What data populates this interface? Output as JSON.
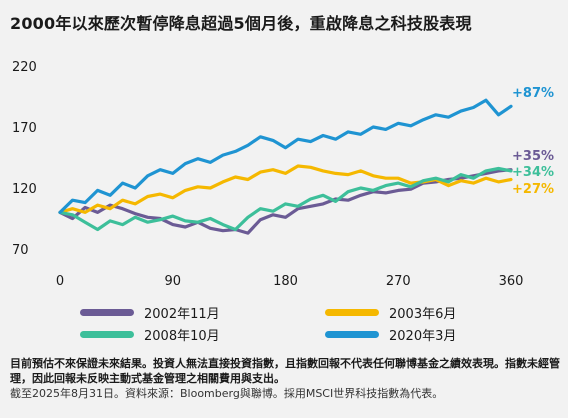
{
  "title": "2000年以來歷次暫停降息超過5個月後，重啟降息之科技股表現",
  "chart_data": {
    "type": "line",
    "xlabel": "",
    "ylabel": "",
    "xlim": [
      0,
      360
    ],
    "ylim": [
      70,
      220
    ],
    "x_ticks": [
      "0",
      "90",
      "180",
      "270",
      "360"
    ],
    "y_ticks": [
      "70",
      "120",
      "170",
      "220"
    ],
    "grid": false,
    "legend_position": "bottom",
    "series": [
      {
        "name": "2002年11月",
        "color": "#6b5b95",
        "end_label": "+35%",
        "x": [
          0,
          10,
          20,
          30,
          40,
          50,
          60,
          70,
          80,
          90,
          100,
          110,
          120,
          130,
          140,
          150,
          160,
          170,
          180,
          190,
          200,
          210,
          220,
          230,
          240,
          250,
          260,
          270,
          280,
          290,
          300,
          310,
          320,
          330,
          340,
          350,
          360
        ],
        "y": [
          100,
          95,
          104,
          100,
          106,
          103,
          99,
          96,
          95,
          90,
          88,
          92,
          87,
          85,
          86,
          83,
          94,
          98,
          96,
          103,
          105,
          107,
          111,
          110,
          114,
          117,
          116,
          118,
          119,
          124,
          125,
          127,
          128,
          130,
          132,
          134,
          135
        ]
      },
      {
        "name": "2003年6月",
        "color": "#f5b800",
        "end_label": "+27%",
        "x": [
          0,
          10,
          20,
          30,
          40,
          50,
          60,
          70,
          80,
          90,
          100,
          110,
          120,
          130,
          140,
          150,
          160,
          170,
          180,
          190,
          200,
          210,
          220,
          230,
          240,
          250,
          260,
          270,
          280,
          290,
          300,
          310,
          320,
          330,
          340,
          350,
          360
        ],
        "y": [
          100,
          103,
          100,
          106,
          103,
          110,
          107,
          113,
          115,
          112,
          118,
          121,
          120,
          125,
          129,
          127,
          133,
          135,
          132,
          138,
          137,
          134,
          132,
          131,
          134,
          130,
          128,
          128,
          124,
          125,
          127,
          122,
          126,
          124,
          128,
          125,
          127
        ]
      },
      {
        "name": "2008年10月",
        "color": "#3dbf9a",
        "end_label": "+34%",
        "x": [
          0,
          10,
          20,
          30,
          40,
          50,
          60,
          70,
          80,
          90,
          100,
          110,
          120,
          130,
          140,
          150,
          160,
          170,
          180,
          190,
          200,
          210,
          220,
          230,
          240,
          250,
          260,
          270,
          280,
          290,
          300,
          310,
          320,
          330,
          340,
          350,
          360
        ],
        "y": [
          100,
          98,
          92,
          86,
          93,
          90,
          96,
          92,
          94,
          97,
          93,
          92,
          95,
          90,
          86,
          96,
          103,
          101,
          107,
          105,
          111,
          114,
          109,
          117,
          120,
          118,
          122,
          124,
          121,
          126,
          128,
          125,
          131,
          128,
          134,
          136,
          134
        ]
      },
      {
        "name": "2020年3月",
        "color": "#1f94d2",
        "end_label": "+87%",
        "x": [
          0,
          10,
          20,
          30,
          40,
          50,
          60,
          70,
          80,
          90,
          100,
          110,
          120,
          130,
          140,
          150,
          160,
          170,
          180,
          190,
          200,
          210,
          220,
          230,
          240,
          250,
          260,
          270,
          280,
          290,
          300,
          310,
          320,
          330,
          340,
          350,
          360
        ],
        "y": [
          100,
          110,
          108,
          118,
          114,
          124,
          120,
          130,
          135,
          132,
          140,
          144,
          141,
          147,
          150,
          155,
          162,
          159,
          153,
          160,
          158,
          163,
          160,
          166,
          164,
          170,
          168,
          173,
          171,
          176,
          180,
          178,
          183,
          186,
          192,
          180,
          187
        ]
      }
    ]
  },
  "footnote": {
    "bold": "目前預估不來保證未來結果。投資人無法直接投資指數，且指數回報不代表任何聯博基金之績效表現。指數未經管理，因此回報未反映主動式基金管理之相關費用與支出。",
    "normal": "截至2025年8月31日。資料來源：Bloomberg與聯博。採用MSCI世界科技指數為代表。"
  }
}
